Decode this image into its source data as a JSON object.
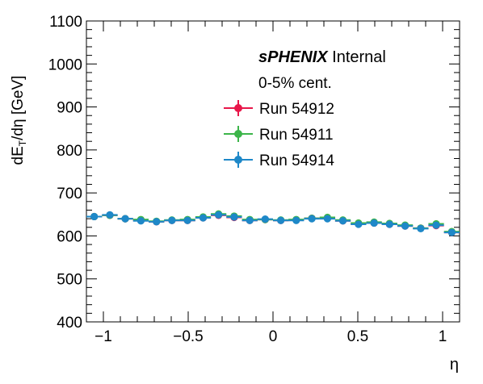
{
  "chart_data": {
    "type": "scatter",
    "title": "",
    "xlabel": "η",
    "ylabel": "dE",
    "ylabel_sub": "T",
    "ylabel_tail": "/dη [GeV]",
    "xlim": [
      -1.1,
      1.1
    ],
    "ylim": [
      400,
      1100
    ],
    "x_ticks": [
      -1,
      -0.5,
      0,
      0.5,
      1
    ],
    "x_tick_labels": [
      "−1",
      "−0.5",
      "0",
      "0.5",
      "1"
    ],
    "y_ticks": [
      400,
      500,
      600,
      700,
      800,
      900,
      1000,
      1100
    ],
    "y_tick_labels": [
      "400",
      "500",
      "600",
      "700",
      "800",
      "900",
      "1000",
      "1100"
    ],
    "x_bin_half_width": 0.0458,
    "annotation": {
      "brand": "sPHENIX",
      "brand_suffix": "Internal",
      "centrality": "0-5% cent."
    },
    "legend_position": "top-center",
    "x": [
      -1.054,
      -0.962,
      -0.871,
      -0.779,
      -0.687,
      -0.596,
      -0.504,
      -0.412,
      -0.321,
      -0.229,
      -0.137,
      -0.046,
      0.046,
      0.137,
      0.229,
      0.321,
      0.412,
      0.504,
      0.596,
      0.687,
      0.779,
      0.871,
      0.962,
      1.054
    ],
    "series": [
      {
        "name": "Run 54912",
        "color": "#e8174a",
        "values": [
          645,
          648,
          640,
          636,
          633,
          636,
          636,
          642,
          648,
          643,
          636,
          638,
          636,
          637,
          641,
          641,
          635,
          628,
          630,
          627,
          623,
          618,
          624,
          608
        ]
      },
      {
        "name": "Run 54911",
        "color": "#3cb54a",
        "values": [
          645,
          648,
          640,
          638,
          634,
          637,
          638,
          644,
          651,
          646,
          638,
          638,
          637,
          638,
          641,
          643,
          637,
          630,
          632,
          629,
          625,
          618,
          628,
          610
        ]
      },
      {
        "name": "Run 54914",
        "color": "#1e88c8",
        "values": [
          645,
          649,
          640,
          635,
          633,
          636,
          636,
          642,
          649,
          644,
          636,
          639,
          636,
          636,
          640,
          640,
          635,
          627,
          630,
          627,
          623,
          617,
          625,
          608
        ]
      }
    ]
  }
}
